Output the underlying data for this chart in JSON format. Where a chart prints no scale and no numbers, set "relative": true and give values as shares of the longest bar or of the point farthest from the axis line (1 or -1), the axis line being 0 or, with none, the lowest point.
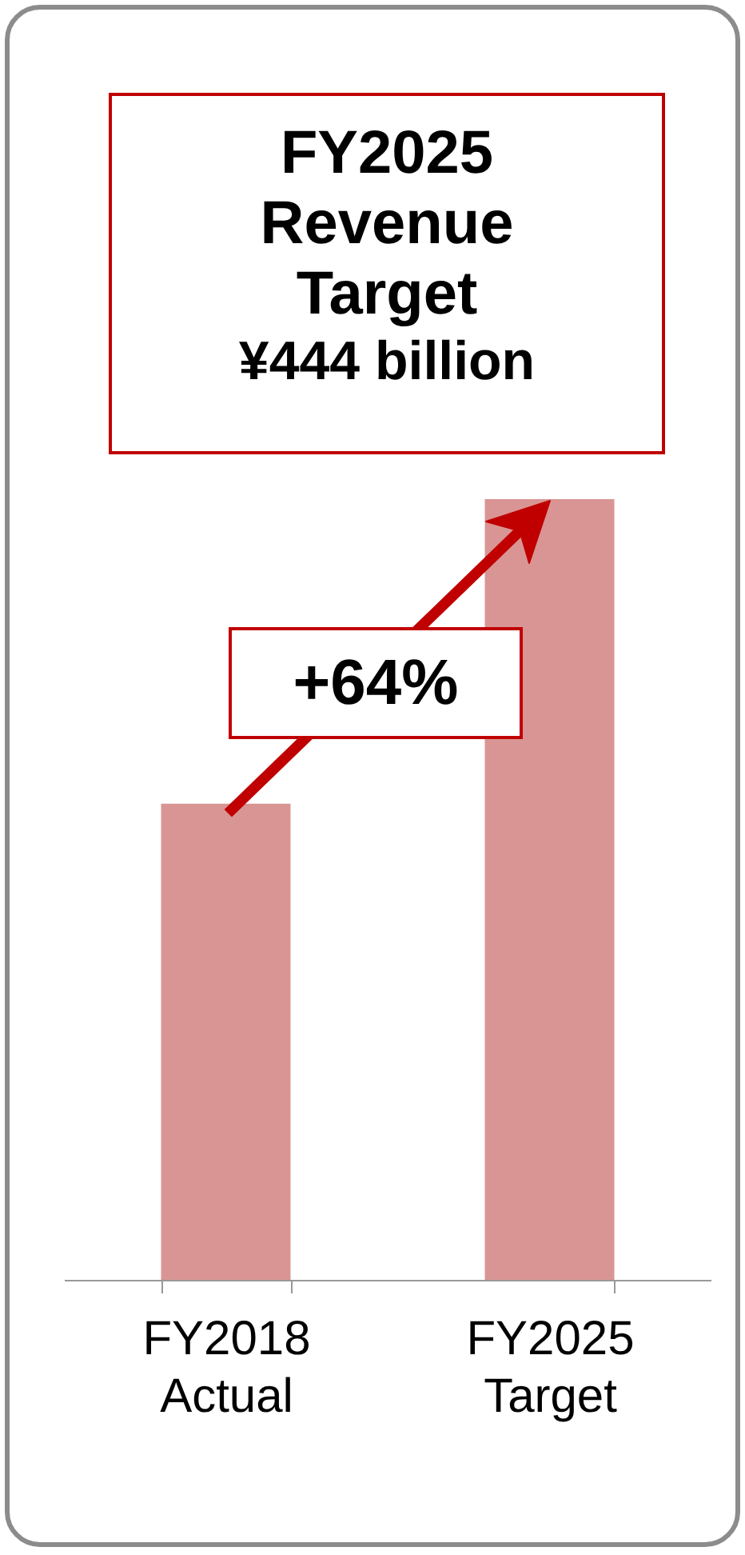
{
  "chart_data": {
    "type": "bar",
    "title": "FY2025 Revenue Target",
    "annotations": [
      "¥444 billion",
      "+64%"
    ],
    "categories": [
      "FY2018 Actual",
      "FY2025 Target"
    ],
    "values": [
      0.61,
      1
    ],
    "color": "#d99594",
    "relative": true
  }
}
